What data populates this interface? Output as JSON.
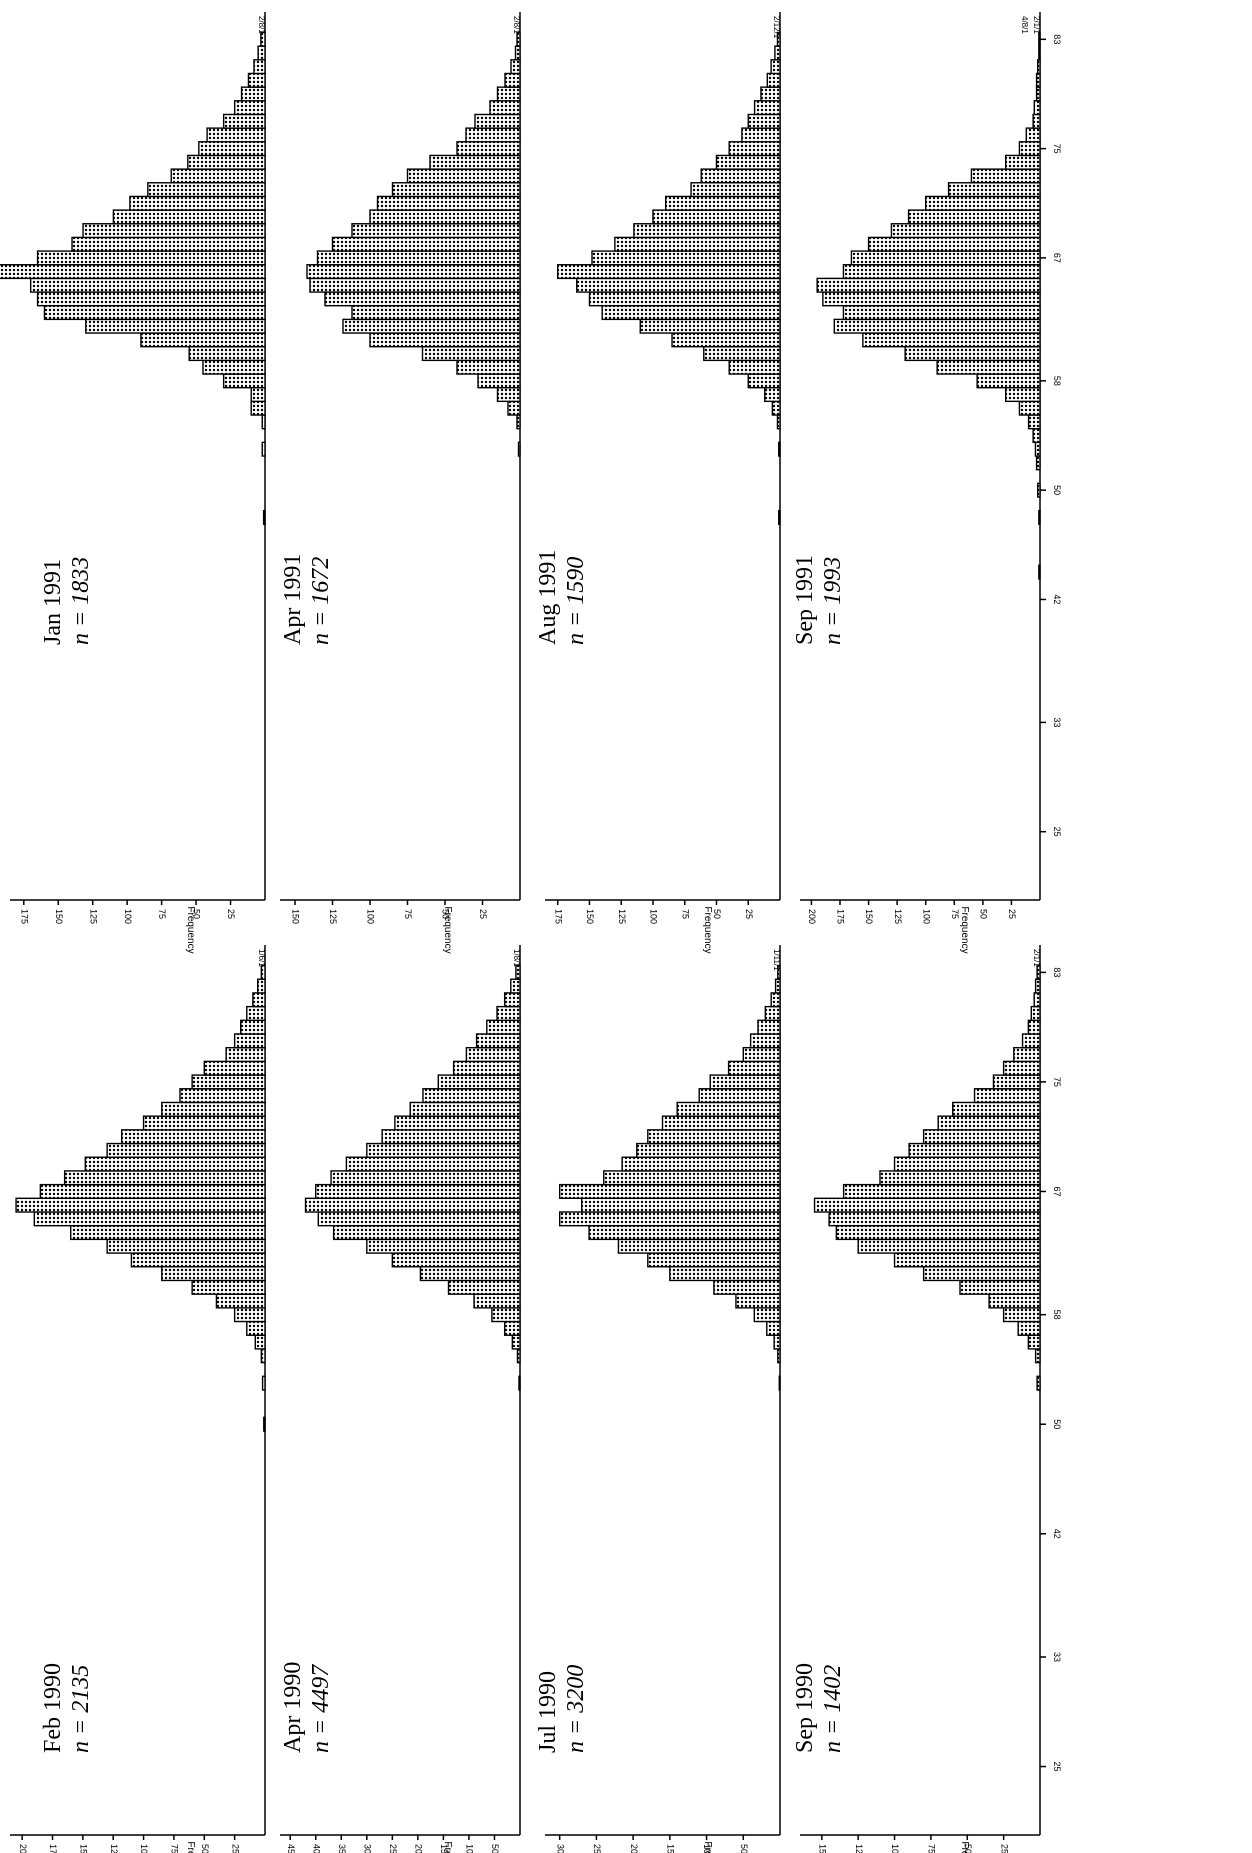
{
  "chart_data": [
    {
      "type": "bar",
      "label": "Jan 1991",
      "n_label": "n = 1833",
      "ylabel": "Frequency",
      "yticks": [
        25,
        50,
        75,
        100,
        125,
        150,
        175
      ],
      "ylim": [
        0,
        185
      ],
      "xticks": [
        25,
        33,
        42,
        50,
        58,
        67,
        75,
        83
      ],
      "xlim": [
        20,
        85
      ],
      "outlier_labels": [
        "2/8/1"
      ],
      "bins": [
        [
          48,
          1
        ],
        [
          53,
          2
        ],
        [
          55,
          2
        ],
        [
          56,
          10
        ],
        [
          57,
          10
        ],
        [
          58,
          30
        ],
        [
          59,
          45
        ],
        [
          60,
          55
        ],
        [
          61,
          90
        ],
        [
          62,
          130
        ],
        [
          63,
          160
        ],
        [
          64,
          165
        ],
        [
          65,
          170
        ],
        [
          66,
          200
        ],
        [
          67,
          165
        ],
        [
          68,
          140
        ],
        [
          69,
          132
        ],
        [
          70,
          110
        ],
        [
          71,
          98
        ],
        [
          72,
          85
        ],
        [
          73,
          68
        ],
        [
          74,
          56
        ],
        [
          75,
          48
        ],
        [
          76,
          42
        ],
        [
          77,
          30
        ],
        [
          78,
          22
        ],
        [
          79,
          17
        ],
        [
          80,
          12
        ],
        [
          81,
          8
        ],
        [
          82,
          5
        ],
        [
          83,
          3
        ]
      ]
    },
    {
      "type": "bar",
      "label": "Apr 1991",
      "n_label": "n = 1672",
      "ylabel": "Frequency",
      "yticks": [
        25,
        50,
        75,
        100,
        125,
        150
      ],
      "ylim": [
        0,
        160
      ],
      "xticks": [
        25,
        33,
        42,
        50,
        58,
        67,
        75,
        83
      ],
      "xlim": [
        20,
        85
      ],
      "outlier_labels": [
        "2/8/1"
      ],
      "bins": [
        [
          53,
          1
        ],
        [
          55,
          2
        ],
        [
          56,
          8
        ],
        [
          57,
          15
        ],
        [
          58,
          28
        ],
        [
          59,
          42
        ],
        [
          60,
          65
        ],
        [
          61,
          100
        ],
        [
          62,
          118
        ],
        [
          63,
          112
        ],
        [
          64,
          130
        ],
        [
          65,
          140
        ],
        [
          66,
          142
        ],
        [
          67,
          135
        ],
        [
          68,
          125
        ],
        [
          69,
          112
        ],
        [
          70,
          100
        ],
        [
          71,
          95
        ],
        [
          72,
          85
        ],
        [
          73,
          75
        ],
        [
          74,
          60
        ],
        [
          75,
          42
        ],
        [
          76,
          36
        ],
        [
          77,
          30
        ],
        [
          78,
          20
        ],
        [
          79,
          15
        ],
        [
          80,
          10
        ],
        [
          81,
          6
        ],
        [
          82,
          3
        ],
        [
          83,
          2
        ]
      ]
    },
    {
      "type": "bar",
      "label": "Aug 1991",
      "n_label": "n = 1590",
      "ylabel": "Frequency",
      "yticks": [
        25,
        50,
        75,
        100,
        125,
        150,
        175
      ],
      "ylim": [
        0,
        185
      ],
      "xticks": [
        25,
        33,
        42,
        50,
        58,
        67,
        75,
        83
      ],
      "xlim": [
        20,
        85
      ],
      "outlier_labels": [
        "2/12/1"
      ],
      "bins": [
        [
          48,
          1
        ],
        [
          53,
          1
        ],
        [
          55,
          2
        ],
        [
          56,
          6
        ],
        [
          57,
          12
        ],
        [
          58,
          25
        ],
        [
          59,
          40
        ],
        [
          60,
          60
        ],
        [
          61,
          85
        ],
        [
          62,
          110
        ],
        [
          63,
          140
        ],
        [
          64,
          150
        ],
        [
          65,
          160
        ],
        [
          66,
          175
        ],
        [
          67,
          148
        ],
        [
          68,
          130
        ],
        [
          69,
          115
        ],
        [
          70,
          100
        ],
        [
          71,
          90
        ],
        [
          72,
          70
        ],
        [
          73,
          62
        ],
        [
          74,
          50
        ],
        [
          75,
          40
        ],
        [
          76,
          30
        ],
        [
          77,
          25
        ],
        [
          78,
          20
        ],
        [
          79,
          15
        ],
        [
          80,
          10
        ],
        [
          81,
          7
        ],
        [
          82,
          4
        ],
        [
          83,
          2
        ]
      ]
    },
    {
      "type": "bar",
      "label": "Sep 1991",
      "n_label": "n = 1993",
      "ylabel": "Frequency",
      "yticks": [
        25,
        50,
        75,
        100,
        125,
        150,
        175,
        200
      ],
      "ylim": [
        0,
        210
      ],
      "xticks": [
        25,
        33,
        42,
        50,
        58,
        67,
        75,
        83
      ],
      "xlim": [
        20,
        85
      ],
      "outlier_labels": [
        "2/1/1",
        "4/8/1"
      ],
      "bins": [
        [
          44,
          1
        ],
        [
          48,
          1
        ],
        [
          50,
          2
        ],
        [
          52,
          3
        ],
        [
          53,
          4
        ],
        [
          54,
          6
        ],
        [
          55,
          10
        ],
        [
          56,
          18
        ],
        [
          57,
          30
        ],
        [
          58,
          55
        ],
        [
          59,
          90
        ],
        [
          60,
          118
        ],
        [
          61,
          155
        ],
        [
          62,
          180
        ],
        [
          63,
          172
        ],
        [
          64,
          190
        ],
        [
          65,
          195
        ],
        [
          66,
          172
        ],
        [
          67,
          165
        ],
        [
          68,
          150
        ],
        [
          69,
          130
        ],
        [
          70,
          115
        ],
        [
          71,
          100
        ],
        [
          72,
          80
        ],
        [
          73,
          60
        ],
        [
          74,
          30
        ],
        [
          75,
          18
        ],
        [
          76,
          12
        ],
        [
          77,
          6
        ],
        [
          78,
          5
        ],
        [
          79,
          3
        ],
        [
          80,
          3
        ],
        [
          81,
          2
        ],
        [
          82,
          1
        ],
        [
          83,
          1
        ]
      ]
    },
    {
      "type": "bar",
      "label": "Feb 1990",
      "n_label": "n = 2135",
      "ylabel": "Frequency",
      "yticks": [
        25,
        50,
        75,
        100,
        125,
        150,
        175,
        200
      ],
      "ylim": [
        0,
        210
      ],
      "xticks": [
        25,
        33,
        42,
        50,
        58,
        67,
        75,
        83
      ],
      "xlim": [
        20,
        85
      ],
      "outlier_labels": [
        "1/6/1"
      ],
      "bins": [
        [
          50,
          1
        ],
        [
          53,
          2
        ],
        [
          55,
          3
        ],
        [
          56,
          8
        ],
        [
          57,
          15
        ],
        [
          58,
          25
        ],
        [
          59,
          40
        ],
        [
          60,
          60
        ],
        [
          61,
          85
        ],
        [
          62,
          110
        ],
        [
          63,
          130
        ],
        [
          64,
          160
        ],
        [
          65,
          190
        ],
        [
          66,
          205
        ],
        [
          67,
          185
        ],
        [
          68,
          165
        ],
        [
          69,
          148
        ],
        [
          70,
          130
        ],
        [
          71,
          118
        ],
        [
          72,
          100
        ],
        [
          73,
          85
        ],
        [
          74,
          70
        ],
        [
          75,
          60
        ],
        [
          76,
          50
        ],
        [
          77,
          32
        ],
        [
          78,
          25
        ],
        [
          79,
          20
        ],
        [
          80,
          15
        ],
        [
          81,
          10
        ],
        [
          82,
          6
        ],
        [
          83,
          3
        ]
      ]
    },
    {
      "type": "bar",
      "label": "Apr 1990",
      "n_label": "n = 4497",
      "ylabel": "Frequency",
      "yticks": [
        50,
        100,
        150,
        200,
        250,
        300,
        350,
        400,
        450
      ],
      "ylim": [
        0,
        470
      ],
      "xticks": [
        25,
        33,
        42,
        50,
        58,
        67,
        75,
        83
      ],
      "xlim": [
        20,
        85
      ],
      "outlier_labels": [
        "1/8/1"
      ],
      "bins": [
        [
          53,
          2
        ],
        [
          55,
          5
        ],
        [
          56,
          15
        ],
        [
          57,
          30
        ],
        [
          58,
          55
        ],
        [
          59,
          90
        ],
        [
          60,
          140
        ],
        [
          61,
          195
        ],
        [
          62,
          250
        ],
        [
          63,
          300
        ],
        [
          64,
          365
        ],
        [
          65,
          395
        ],
        [
          66,
          420
        ],
        [
          67,
          400
        ],
        [
          68,
          370
        ],
        [
          69,
          340
        ],
        [
          70,
          300
        ],
        [
          71,
          270
        ],
        [
          72,
          245
        ],
        [
          73,
          215
        ],
        [
          74,
          190
        ],
        [
          75,
          160
        ],
        [
          76,
          130
        ],
        [
          77,
          105
        ],
        [
          78,
          85
        ],
        [
          79,
          65
        ],
        [
          80,
          45
        ],
        [
          81,
          30
        ],
        [
          82,
          18
        ],
        [
          83,
          8
        ]
      ]
    },
    {
      "type": "bar",
      "label": "Jul 1990",
      "n_label": "n = 3200",
      "ylabel": "Frequency",
      "yticks": [
        50,
        100,
        150,
        200,
        250,
        300
      ],
      "ylim": [
        0,
        320
      ],
      "xticks": [
        25,
        33,
        42,
        50,
        58,
        67,
        75,
        83
      ],
      "xlim": [
        20,
        85
      ],
      "outlier_labels": [
        "1/11/1"
      ],
      "bins": [
        [
          53,
          1
        ],
        [
          55,
          3
        ],
        [
          56,
          8
        ],
        [
          57,
          18
        ],
        [
          58,
          35
        ],
        [
          59,
          60
        ],
        [
          60,
          90
        ],
        [
          61,
          150
        ],
        [
          62,
          180
        ],
        [
          63,
          220
        ],
        [
          64,
          260
        ],
        [
          65,
          300
        ],
        [
          66,
          270
        ],
        [
          67,
          300
        ],
        [
          68,
          240
        ],
        [
          69,
          215
        ],
        [
          70,
          195
        ],
        [
          71,
          180
        ],
        [
          72,
          160
        ],
        [
          73,
          140
        ],
        [
          74,
          110
        ],
        [
          75,
          95
        ],
        [
          76,
          70
        ],
        [
          77,
          50
        ],
        [
          78,
          40
        ],
        [
          79,
          30
        ],
        [
          80,
          20
        ],
        [
          81,
          12
        ],
        [
          82,
          6
        ],
        [
          83,
          3
        ]
      ]
    },
    {
      "type": "bar",
      "label": "Sep 1990",
      "n_label": "n = 1402",
      "ylabel": "Frequency",
      "yticks": [
        25,
        50,
        75,
        100,
        125,
        150
      ],
      "ylim": [
        0,
        165
      ],
      "xticks": [
        25,
        33,
        42,
        50,
        58,
        67,
        75,
        83
      ],
      "xlim": [
        20,
        85
      ],
      "outlier_labels": [
        "2/1/1"
      ],
      "bins": [
        [
          53,
          2
        ],
        [
          55,
          3
        ],
        [
          56,
          8
        ],
        [
          57,
          15
        ],
        [
          58,
          25
        ],
        [
          59,
          35
        ],
        [
          60,
          55
        ],
        [
          61,
          80
        ],
        [
          62,
          100
        ],
        [
          63,
          125
        ],
        [
          64,
          140
        ],
        [
          65,
          145
        ],
        [
          66,
          155
        ],
        [
          67,
          135
        ],
        [
          68,
          110
        ],
        [
          69,
          100
        ],
        [
          70,
          90
        ],
        [
          71,
          80
        ],
        [
          72,
          70
        ],
        [
          73,
          60
        ],
        [
          74,
          45
        ],
        [
          75,
          32
        ],
        [
          76,
          25
        ],
        [
          77,
          18
        ],
        [
          78,
          12
        ],
        [
          79,
          8
        ],
        [
          80,
          6
        ],
        [
          81,
          4
        ],
        [
          82,
          3
        ],
        [
          83,
          2
        ]
      ]
    }
  ]
}
